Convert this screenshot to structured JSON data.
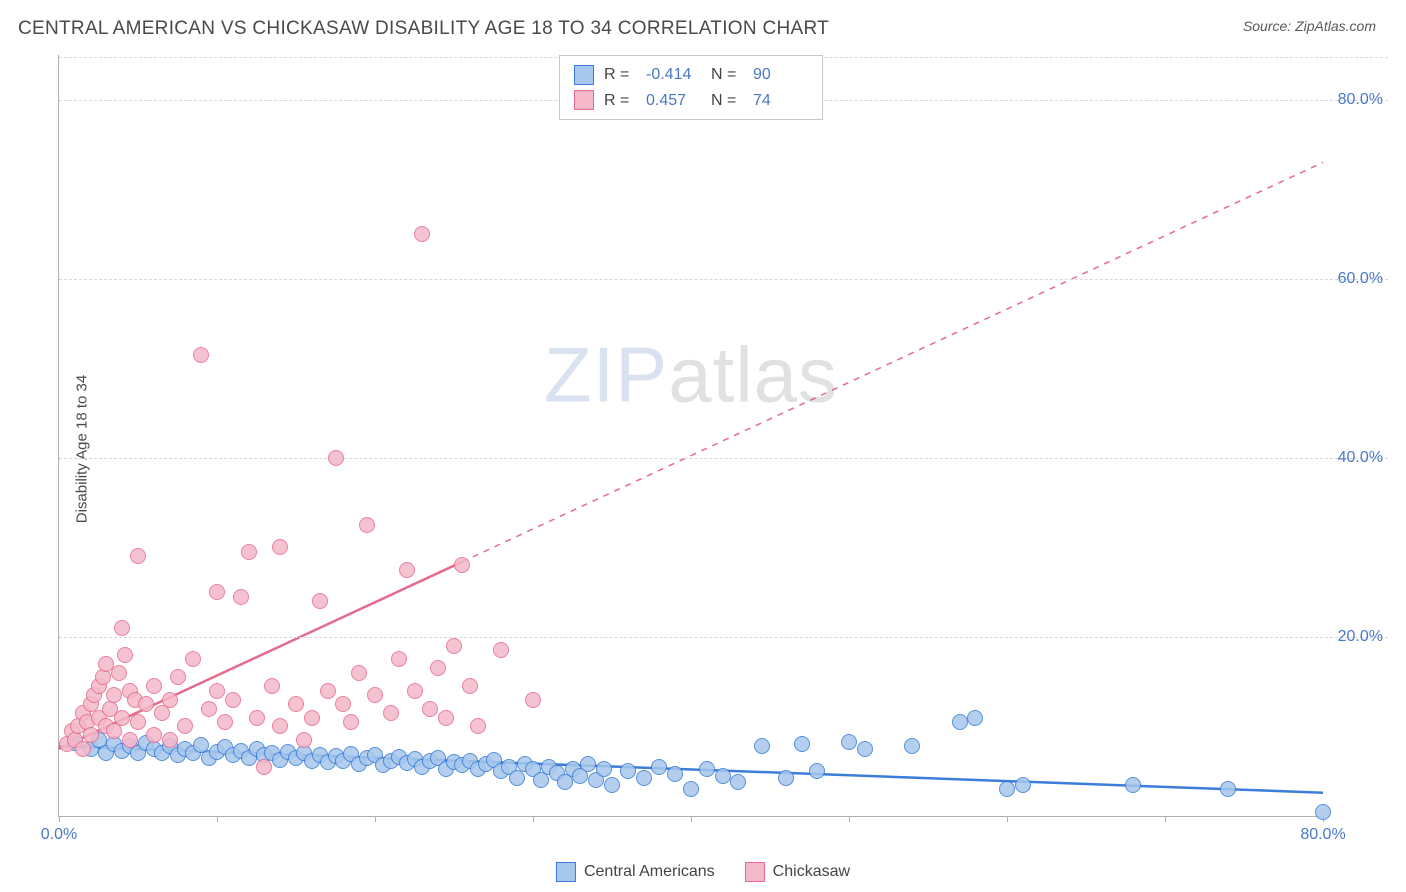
{
  "header": {
    "title": "CENTRAL AMERICAN VS CHICKASAW DISABILITY AGE 18 TO 34 CORRELATION CHART",
    "source_prefix": "Source: ",
    "source_name": "ZipAtlas.com"
  },
  "chart": {
    "type": "scatter",
    "ylabel": "Disability Age 18 to 34",
    "background_color": "#ffffff",
    "grid_color": "#d8d8d8",
    "axis_color": "#b0b0b0",
    "tick_label_color": "#4a78c8",
    "xlim": [
      0,
      80
    ],
    "ylim": [
      0,
      85
    ],
    "x_ticks": [
      0,
      10,
      20,
      30,
      40,
      50,
      60,
      70,
      80
    ],
    "x_tick_labels": {
      "0": "0.0%",
      "80": "80.0%"
    },
    "y_ticks": [
      20,
      40,
      60,
      80
    ],
    "y_tick_labels": {
      "20": "20.0%",
      "40": "40.0%",
      "60": "60.0%",
      "80": "80.0%"
    },
    "marker_radius": 8,
    "marker_stroke_width": 1.2,
    "marker_fill_opacity": 0.35,
    "watermark": {
      "zip": "ZIP",
      "atlas": "atlas"
    },
    "series": [
      {
        "name": "Central Americans",
        "color_stroke": "#3b7dd8",
        "color_fill": "#a7c7ec",
        "R": "-0.414",
        "N": "90",
        "trend": {
          "x1": 0,
          "y1": 7.8,
          "x2": 80,
          "y2": 2.6,
          "solid_until_x": 80
        },
        "points": [
          [
            1,
            8.2
          ],
          [
            2,
            7.5
          ],
          [
            2.5,
            8.5
          ],
          [
            3,
            7
          ],
          [
            3.5,
            8
          ],
          [
            4,
            7.3
          ],
          [
            4.5,
            7.8
          ],
          [
            5,
            7
          ],
          [
            5.5,
            8.2
          ],
          [
            6,
            7.5
          ],
          [
            6.5,
            7
          ],
          [
            7,
            7.8
          ],
          [
            7.5,
            6.8
          ],
          [
            8,
            7.5
          ],
          [
            8.5,
            7
          ],
          [
            9,
            7.9
          ],
          [
            9.5,
            6.5
          ],
          [
            10,
            7.2
          ],
          [
            10.5,
            7.7
          ],
          [
            11,
            6.8
          ],
          [
            11.5,
            7.3
          ],
          [
            12,
            6.5
          ],
          [
            12.5,
            7.5
          ],
          [
            13,
            6.8
          ],
          [
            13.5,
            7
          ],
          [
            14,
            6.3
          ],
          [
            14.5,
            7.2
          ],
          [
            15,
            6.5
          ],
          [
            15.5,
            7
          ],
          [
            16,
            6.2
          ],
          [
            16.5,
            6.8
          ],
          [
            17,
            6
          ],
          [
            17.5,
            6.7
          ],
          [
            18,
            6.2
          ],
          [
            18.5,
            6.9
          ],
          [
            19,
            5.8
          ],
          [
            19.5,
            6.5
          ],
          [
            20,
            6.8
          ],
          [
            20.5,
            5.7
          ],
          [
            21,
            6.2
          ],
          [
            21.5,
            6.6
          ],
          [
            22,
            5.9
          ],
          [
            22.5,
            6.4
          ],
          [
            23,
            5.5
          ],
          [
            23.5,
            6.1
          ],
          [
            24,
            6.5
          ],
          [
            24.5,
            5.3
          ],
          [
            25,
            6
          ],
          [
            25.5,
            5.7
          ],
          [
            26,
            6.2
          ],
          [
            26.5,
            5.2
          ],
          [
            27,
            5.8
          ],
          [
            27.5,
            6.3
          ],
          [
            28,
            5
          ],
          [
            28.5,
            5.5
          ],
          [
            29,
            4.2
          ],
          [
            29.5,
            5.8
          ],
          [
            30,
            5.2
          ],
          [
            30.5,
            4
          ],
          [
            31,
            5.5
          ],
          [
            31.5,
            4.8
          ],
          [
            32,
            3.8
          ],
          [
            32.5,
            5.2
          ],
          [
            33,
            4.5
          ],
          [
            33.5,
            5.8
          ],
          [
            34,
            4
          ],
          [
            34.5,
            5.3
          ],
          [
            35,
            3.5
          ],
          [
            36,
            5
          ],
          [
            37,
            4.2
          ],
          [
            38,
            5.5
          ],
          [
            39,
            4.7
          ],
          [
            40,
            3
          ],
          [
            41,
            5.2
          ],
          [
            42,
            4.5
          ],
          [
            43,
            3.8
          ],
          [
            44.5,
            7.8
          ],
          [
            46,
            4.2
          ],
          [
            47,
            8
          ],
          [
            48,
            5
          ],
          [
            50,
            8.3
          ],
          [
            51,
            7.5
          ],
          [
            54,
            7.8
          ],
          [
            57,
            10.5
          ],
          [
            58,
            11
          ],
          [
            60,
            3
          ],
          [
            61,
            3.5
          ],
          [
            68,
            3.5
          ],
          [
            74,
            3
          ],
          [
            80,
            0.5
          ]
        ]
      },
      {
        "name": "Chickasaw",
        "color_stroke": "#e56b8e",
        "color_fill": "#f4b8c9",
        "R": "0.457",
        "N": "74",
        "trend": {
          "x1": 0,
          "y1": 7.5,
          "x2": 80,
          "y2": 73,
          "solid_until_x": 25.5
        },
        "points": [
          [
            0.5,
            8
          ],
          [
            0.8,
            9.5
          ],
          [
            1,
            8.5
          ],
          [
            1.2,
            10
          ],
          [
            1.5,
            11.5
          ],
          [
            1.5,
            7.5
          ],
          [
            1.8,
            10.5
          ],
          [
            2,
            9
          ],
          [
            2,
            12.5
          ],
          [
            2.2,
            13.5
          ],
          [
            2.5,
            11
          ],
          [
            2.5,
            14.5
          ],
          [
            2.8,
            15.5
          ],
          [
            3,
            10
          ],
          [
            3,
            17
          ],
          [
            3.2,
            12
          ],
          [
            3.5,
            13.5
          ],
          [
            3.5,
            9.5
          ],
          [
            3.8,
            16
          ],
          [
            4,
            11
          ],
          [
            4,
            21
          ],
          [
            4.2,
            18
          ],
          [
            4.5,
            14
          ],
          [
            4.5,
            8.5
          ],
          [
            4.8,
            13
          ],
          [
            5,
            10.5
          ],
          [
            5,
            29
          ],
          [
            5.5,
            12.5
          ],
          [
            6,
            14.5
          ],
          [
            6,
            9
          ],
          [
            6.5,
            11.5
          ],
          [
            7,
            13
          ],
          [
            7,
            8.5
          ],
          [
            7.5,
            15.5
          ],
          [
            8,
            10
          ],
          [
            8.5,
            17.5
          ],
          [
            9,
            51.5
          ],
          [
            9.5,
            12
          ],
          [
            10,
            14
          ],
          [
            10,
            25
          ],
          [
            10.5,
            10.5
          ],
          [
            11,
            13
          ],
          [
            11.5,
            24.5
          ],
          [
            12,
            29.5
          ],
          [
            12.5,
            11
          ],
          [
            13,
            5.5
          ],
          [
            13.5,
            14.5
          ],
          [
            14,
            10
          ],
          [
            14,
            30
          ],
          [
            15,
            12.5
          ],
          [
            15.5,
            8.5
          ],
          [
            16,
            11
          ],
          [
            16.5,
            24
          ],
          [
            17,
            14
          ],
          [
            17.5,
            40
          ],
          [
            18,
            12.5
          ],
          [
            18.5,
            10.5
          ],
          [
            19,
            16
          ],
          [
            19.5,
            32.5
          ],
          [
            20,
            13.5
          ],
          [
            21,
            11.5
          ],
          [
            21.5,
            17.5
          ],
          [
            22,
            27.5
          ],
          [
            22.5,
            14
          ],
          [
            23,
            65
          ],
          [
            23.5,
            12
          ],
          [
            24,
            16.5
          ],
          [
            24.5,
            11
          ],
          [
            25,
            19
          ],
          [
            25.5,
            28
          ],
          [
            26,
            14.5
          ],
          [
            26.5,
            10
          ],
          [
            28,
            18.5
          ],
          [
            30,
            13
          ]
        ]
      }
    ]
  },
  "legend_top": {
    "R_label": "R =",
    "N_label": "N ="
  },
  "legend_bottom": {
    "items": [
      "Central Americans",
      "Chickasaw"
    ]
  }
}
